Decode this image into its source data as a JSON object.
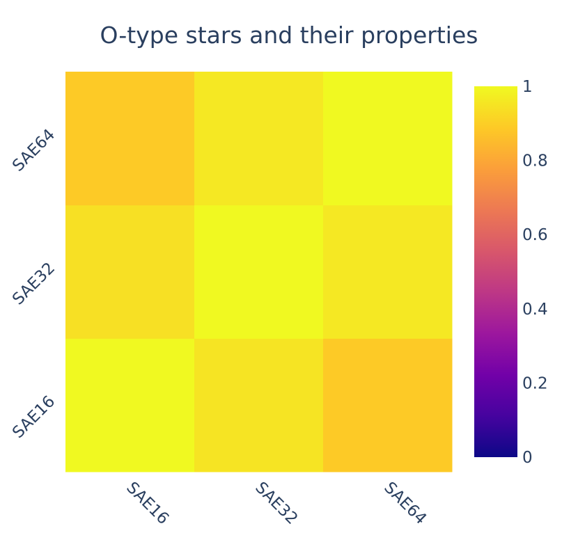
{
  "chart_data": {
    "type": "heatmap",
    "title": "O-type stars and their properties",
    "x_categories": [
      "SAE16",
      "SAE32",
      "SAE64"
    ],
    "y_categories": [
      "SAE16",
      "SAE32",
      "SAE64"
    ],
    "z": [
      [
        1.0,
        0.95,
        0.89
      ],
      [
        0.94,
        1.0,
        0.96
      ],
      [
        0.89,
        0.96,
        1.0
      ]
    ],
    "zlim": [
      0,
      1
    ],
    "colorscale": "plasma",
    "colorbar": {
      "ticks": [
        "0",
        "0.2",
        "0.4",
        "0.6",
        "0.8",
        "1"
      ],
      "tick_values": [
        0,
        0.2,
        0.4,
        0.6,
        0.8,
        1
      ],
      "placement": "right"
    },
    "xlabel": "",
    "ylabel": ""
  }
}
